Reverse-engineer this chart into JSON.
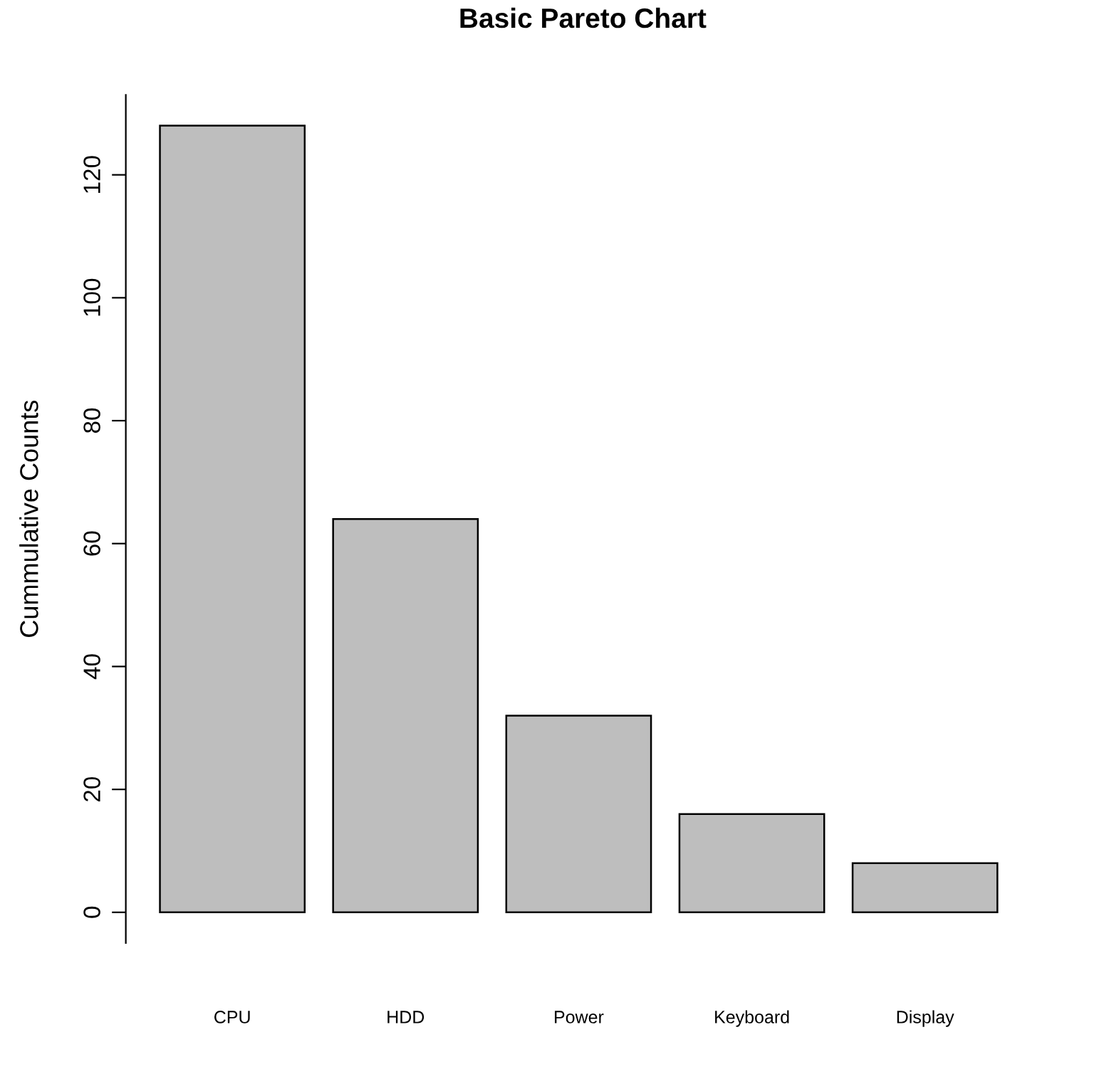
{
  "chart_data": {
    "type": "bar",
    "title": "Basic Pareto Chart",
    "ylabel": "Cummulative Counts",
    "categories": [
      "CPU",
      "HDD",
      "Power",
      "Keyboard",
      "Display"
    ],
    "values": [
      128,
      64,
      32,
      16,
      8
    ],
    "color": "#bebebe",
    "ylim": [
      -5,
      133
    ],
    "yticks": [
      0,
      20,
      40,
      60,
      80,
      100,
      120
    ],
    "grid": false,
    "legend": false
  }
}
